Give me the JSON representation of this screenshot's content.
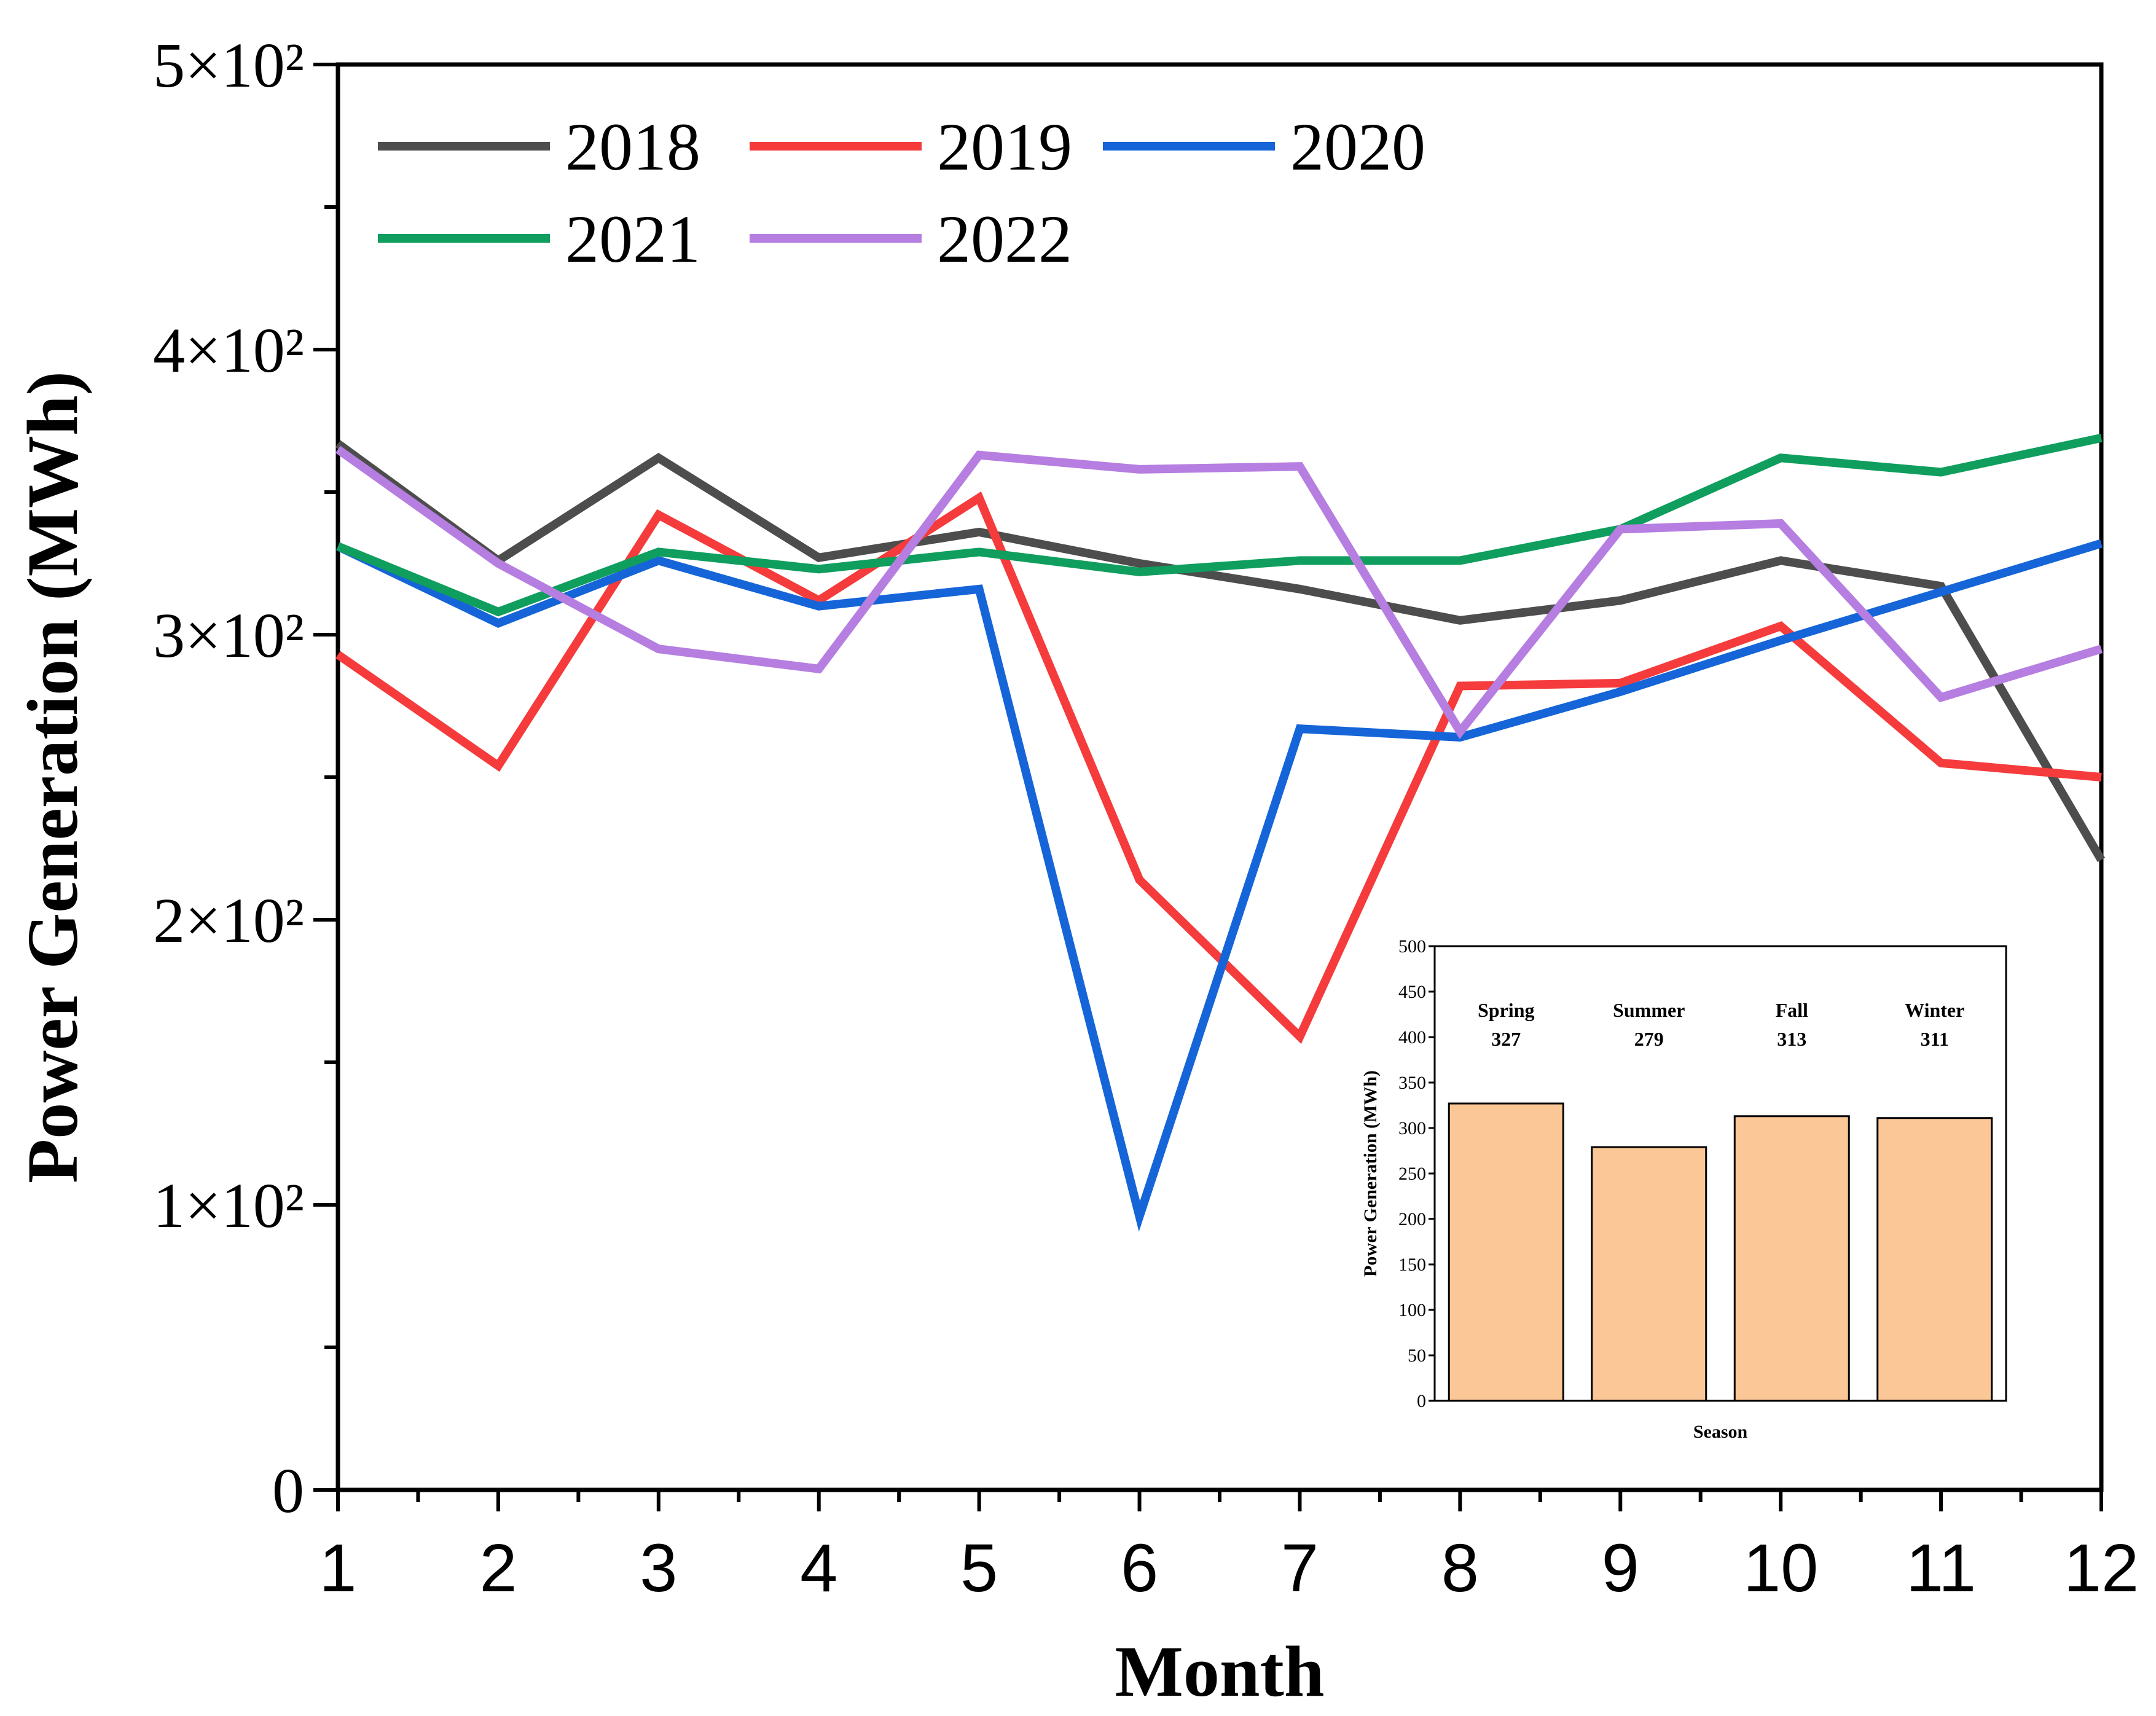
{
  "chart_data": [
    {
      "type": "line",
      "title": "",
      "xlabel": "Month",
      "ylabel": "Power Generation (MWh)",
      "x": [
        1,
        2,
        3,
        4,
        5,
        6,
        7,
        8,
        9,
        10,
        11,
        12
      ],
      "xlim": [
        1,
        12
      ],
      "ylim": [
        0,
        500
      ],
      "y_ticks": [
        {
          "value": 0,
          "label": "0"
        },
        {
          "value": 100,
          "label": "1×10²"
        },
        {
          "value": 200,
          "label": "2×10²"
        },
        {
          "value": 300,
          "label": "3×10²"
        },
        {
          "value": 400,
          "label": "4×10²"
        },
        {
          "value": 500,
          "label": "5×10²"
        }
      ],
      "y_minor_ticks": [
        50,
        150,
        250,
        350,
        450
      ],
      "legend_position": "top-left",
      "series": [
        {
          "name": "2018",
          "color": "#4d4d4d",
          "values": [
            367,
            326,
            362,
            327,
            336,
            325,
            316,
            305,
            312,
            326,
            317,
            221
          ]
        },
        {
          "name": "2019",
          "color": "#f53b3b",
          "values": [
            293,
            254,
            342,
            312,
            348,
            214,
            159,
            282,
            283,
            303,
            255,
            250
          ]
        },
        {
          "name": "2020",
          "color": "#1565d8",
          "values": [
            331,
            304,
            326,
            310,
            316,
            96,
            267,
            264,
            280,
            298,
            315,
            332
          ]
        },
        {
          "name": "2021",
          "color": "#0f9e5e",
          "values": [
            331,
            308,
            329,
            323,
            329,
            322,
            326,
            326,
            337,
            362,
            357,
            369
          ]
        },
        {
          "name": "2022",
          "color": "#b57ee0",
          "values": [
            365,
            325,
            295,
            288,
            363,
            358,
            359,
            266,
            337,
            339,
            278,
            295
          ]
        }
      ]
    },
    {
      "type": "bar",
      "title": "",
      "xlabel": "Season",
      "ylabel": "Power Generation (MWh)",
      "categories": [
        "Spring",
        "Summer",
        "Fall",
        "Winter"
      ],
      "values": [
        327,
        279,
        313,
        311
      ],
      "value_labels": [
        "327",
        "279",
        "313",
        "311"
      ],
      "ylim": [
        0,
        500
      ],
      "y_ticks": [
        0,
        50,
        100,
        150,
        200,
        250,
        300,
        350,
        400,
        450,
        500
      ],
      "bar_color": "#fbc797",
      "position": "bottom-right inset"
    }
  ]
}
